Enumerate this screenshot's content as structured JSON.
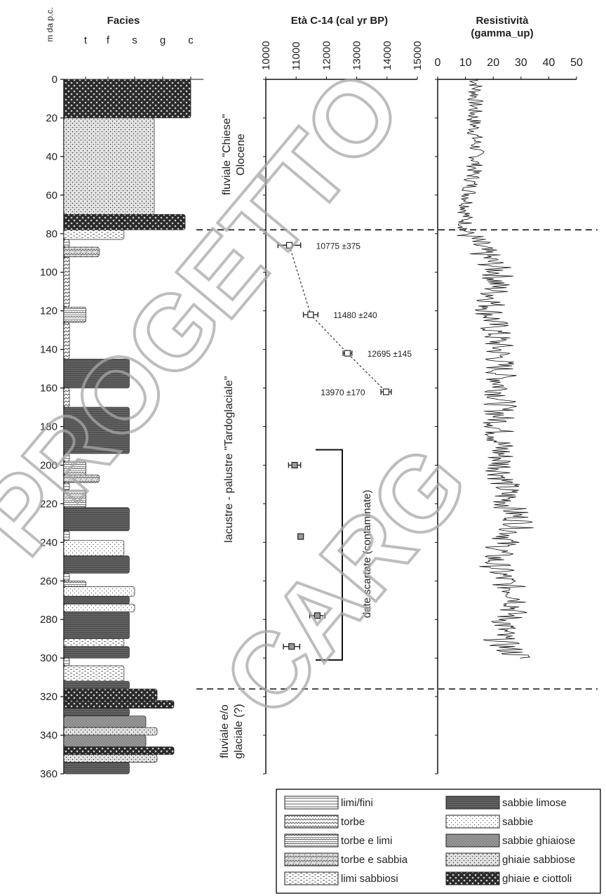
{
  "chart_data": [
    {
      "type": "bar",
      "title": "Facies",
      "ylabel": "m da p.c.",
      "ylim": [
        0,
        360
      ],
      "yticks": [
        0,
        20,
        40,
        60,
        80,
        100,
        120,
        140,
        160,
        180,
        200,
        220,
        240,
        260,
        280,
        300,
        320,
        340,
        360
      ],
      "x_categories": [
        "t",
        "f",
        "s",
        "g",
        "c"
      ],
      "intervals": [
        {
          "top": 0,
          "bottom": 20,
          "facies": "ghiaie e ciottoli",
          "grain": 5.0
        },
        {
          "top": 20,
          "bottom": 70,
          "facies": "ghiaie sabbiose",
          "grain": 3.7
        },
        {
          "top": 70,
          "bottom": 78,
          "facies": "ghiaie e ciottoli",
          "grain": 4.8
        },
        {
          "top": 78,
          "bottom": 83,
          "facies": "limi sabbiosi",
          "grain": 2.6
        },
        {
          "top": 83,
          "bottom": 87,
          "facies": "limi/fini",
          "grain": 1.1
        },
        {
          "top": 87,
          "bottom": 92,
          "facies": "torbe e sabbia",
          "grain": 1.8
        },
        {
          "top": 92,
          "bottom": 118,
          "facies": "torbe",
          "grain": 1.1
        },
        {
          "top": 118,
          "bottom": 126,
          "facies": "torbe e limi",
          "grain": 1.5
        },
        {
          "top": 126,
          "bottom": 145,
          "facies": "torbe",
          "grain": 1.1
        },
        {
          "top": 145,
          "bottom": 160,
          "facies": "sabbie limose",
          "grain": 2.8
        },
        {
          "top": 160,
          "bottom": 170,
          "facies": "torbe",
          "grain": 1.1
        },
        {
          "top": 170,
          "bottom": 194,
          "facies": "sabbie limose",
          "grain": 2.8
        },
        {
          "top": 194,
          "bottom": 198,
          "facies": "limi/fini",
          "grain": 1.1
        },
        {
          "top": 198,
          "bottom": 205,
          "facies": "torbe e limi",
          "grain": 1.5
        },
        {
          "top": 205,
          "bottom": 209,
          "facies": "torbe e sabbia",
          "grain": 1.8
        },
        {
          "top": 209,
          "bottom": 213,
          "facies": "limi/fini",
          "grain": 1.1
        },
        {
          "top": 213,
          "bottom": 222,
          "facies": "torbe e limi",
          "grain": 1.5
        },
        {
          "top": 222,
          "bottom": 234,
          "facies": "sabbie limose",
          "grain": 2.8
        },
        {
          "top": 234,
          "bottom": 239,
          "facies": "limi/fini",
          "grain": 1.1
        },
        {
          "top": 239,
          "bottom": 247,
          "facies": "sabbie",
          "grain": 2.6
        },
        {
          "top": 247,
          "bottom": 256,
          "facies": "sabbie limose",
          "grain": 2.8
        },
        {
          "top": 256,
          "bottom": 260,
          "facies": "limi/fini",
          "grain": 1.1
        },
        {
          "top": 260,
          "bottom": 263,
          "facies": "torbe e limi",
          "grain": 1.5
        },
        {
          "top": 263,
          "bottom": 268,
          "facies": "sabbie",
          "grain": 3.0
        },
        {
          "top": 268,
          "bottom": 272,
          "facies": "sabbie limose",
          "grain": 2.8
        },
        {
          "top": 272,
          "bottom": 276,
          "facies": "sabbie",
          "grain": 3.0
        },
        {
          "top": 276,
          "bottom": 290,
          "facies": "sabbie limose",
          "grain": 2.8
        },
        {
          "top": 290,
          "bottom": 294,
          "facies": "limi sabbiosi",
          "grain": 2.6
        },
        {
          "top": 294,
          "bottom": 300,
          "facies": "sabbie limose",
          "grain": 2.8
        },
        {
          "top": 300,
          "bottom": 304,
          "facies": "limi/fini",
          "grain": 1.1
        },
        {
          "top": 304,
          "bottom": 312,
          "facies": "limi sabbiosi",
          "grain": 2.6
        },
        {
          "top": 312,
          "bottom": 316,
          "facies": "sabbie limose",
          "grain": 2.8
        },
        {
          "top": 316,
          "bottom": 322,
          "facies": "ghiaie e ciottoli",
          "grain": 3.8
        },
        {
          "top": 322,
          "bottom": 326,
          "facies": "ghiaie e ciottoli",
          "grain": 4.4
        },
        {
          "top": 326,
          "bottom": 330,
          "facies": "sabbie limose",
          "grain": 2.8
        },
        {
          "top": 330,
          "bottom": 336,
          "facies": "sabbie ghiaiose",
          "grain": 3.4
        },
        {
          "top": 336,
          "bottom": 340,
          "facies": "ghiaie sabbiose",
          "grain": 3.8
        },
        {
          "top": 340,
          "bottom": 346,
          "facies": "sabbie ghiaiose",
          "grain": 3.4
        },
        {
          "top": 346,
          "bottom": 350,
          "facies": "ghiaie e ciottoli",
          "grain": 4.4
        },
        {
          "top": 350,
          "bottom": 354,
          "facies": "ghiaie sabbiose",
          "grain": 3.8
        },
        {
          "top": 354,
          "bottom": 360,
          "facies": "sabbie limose",
          "grain": 2.8
        }
      ],
      "legend": [
        {
          "label": "limi/fini",
          "pattern": "limi"
        },
        {
          "label": "torbe",
          "pattern": "torbe"
        },
        {
          "label": "torbe e limi",
          "pattern": "torbelimi"
        },
        {
          "label": "torbe e sabbia",
          "pattern": "torbesabbia"
        },
        {
          "label": "limi sabbiosi",
          "pattern": "limisabbiosi"
        },
        {
          "label": "sabbie limose",
          "pattern": "sabbielimose"
        },
        {
          "label": "sabbie",
          "pattern": "sabbie"
        },
        {
          "label": "sabbie ghiaiose",
          "pattern": "sabbieghiaiose"
        },
        {
          "label": "ghiaie sabbiose",
          "pattern": "ghiaiesabbiose"
        },
        {
          "label": "ghiaie e ciottoli",
          "pattern": "ghiaieciottoli"
        }
      ]
    },
    {
      "type": "scatter",
      "title": "Età C-14 (cal yr BP)",
      "xlim": [
        10000,
        15000
      ],
      "xticks": [
        10000,
        11000,
        12000,
        13000,
        14000,
        15000
      ],
      "ylim": [
        0,
        360
      ],
      "dated": [
        {
          "age": 10775,
          "err": 375,
          "depth": 86,
          "label": "10775 ±375"
        },
        {
          "age": 11480,
          "err": 240,
          "depth": 122,
          "label": "11480 ±240"
        },
        {
          "age": 12695,
          "err": 145,
          "depth": 142,
          "label": "12695 ±145"
        },
        {
          "age": 13970,
          "err": 170,
          "depth": 162,
          "label": "13970 ±170"
        }
      ],
      "discarded": [
        {
          "age": 10950,
          "err": 200,
          "depth": 200
        },
        {
          "age": 11150,
          "err": 80,
          "depth": 237
        },
        {
          "age": 11700,
          "err": 250,
          "depth": 278
        },
        {
          "age": 10850,
          "err": 270,
          "depth": 294
        }
      ],
      "bracket_label": "date scartate (contaminate)",
      "units": [
        "fluviale \"Chiese\" Olocene",
        "lacustre - palustre \"Tardoglaciale\"",
        "fluviale e/o glaciale (?)"
      ]
    },
    {
      "type": "line",
      "title": "Resistività",
      "subtitle": "(gamma_up)",
      "xlim": [
        0,
        50
      ],
      "xticks": [
        0,
        10,
        20,
        30,
        40,
        50
      ],
      "ylim": [
        0,
        360
      ],
      "profile": [
        [
          0,
          14
        ],
        [
          20,
          13
        ],
        [
          40,
          14
        ],
        [
          55,
          12
        ],
        [
          70,
          10
        ],
        [
          78,
          10
        ],
        [
          84,
          13
        ],
        [
          100,
          22
        ],
        [
          120,
          19
        ],
        [
          140,
          22
        ],
        [
          160,
          23
        ],
        [
          180,
          22
        ],
        [
          200,
          23
        ],
        [
          220,
          25
        ],
        [
          230,
          30
        ],
        [
          240,
          24
        ],
        [
          250,
          20
        ],
        [
          260,
          24
        ],
        [
          270,
          30
        ],
        [
          280,
          25
        ],
        [
          290,
          22
        ],
        [
          295,
          25
        ],
        [
          300,
          30
        ]
      ]
    }
  ],
  "boundaries_m": [
    78,
    316
  ],
  "watermark": [
    "PROGETTO",
    "CARG"
  ]
}
